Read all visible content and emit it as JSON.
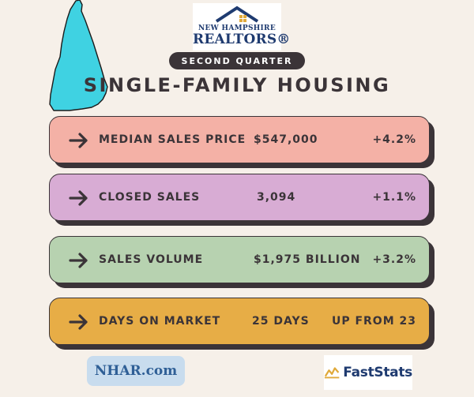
{
  "logo": {
    "line1": "NEW HAMPSHIRE",
    "line2": "REALTORS®",
    "icon": "house-roof-icon",
    "color": "#1f3b70"
  },
  "header": {
    "quarter": "SECOND QUARTER",
    "title": "SINGLE-FAMILY HOUSING"
  },
  "stats": [
    {
      "label": "MEDIAN SALES PRICE",
      "value": "$547,000",
      "change": "+4.2%",
      "color": "#f4b1a6"
    },
    {
      "label": "CLOSED SALES",
      "value": "3,094",
      "change": "+1.1%",
      "color": "#d8acd4"
    },
    {
      "label": "SALES VOLUME",
      "value": "$1,975 BILLION",
      "change": "+3.2%",
      "color": "#b7d2b0"
    },
    {
      "label": "DAYS ON MARKET",
      "value": "25 DAYS",
      "change": "UP FROM 23",
      "color": "#e7ad46"
    }
  ],
  "footer": {
    "site": "NHAR.com",
    "brand": "FastStats",
    "brand_icon": "chart-line-icon"
  },
  "colors": {
    "map": "#3fd2e2",
    "dark": "#3b3438",
    "background": "#f6f0e9"
  }
}
